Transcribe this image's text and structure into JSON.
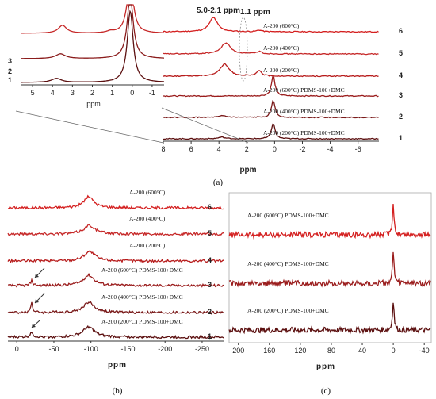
{
  "chart_data": [
    {
      "panel": "a",
      "type": "line",
      "caption": "(a)",
      "xlabel": "ppm",
      "xlim": [
        8,
        -7.5
      ],
      "x_ticks": [
        "8",
        "6",
        "4",
        "2",
        "0",
        "-2",
        "-4",
        "-6"
      ],
      "annotations": [
        "5.0-2.1 ppm",
        "1.1 ppm"
      ],
      "series": [
        {
          "name": "A-200 (600°C)",
          "number": "6",
          "color": "#d42020",
          "peaks": [
            {
              "x": 4.4,
              "h": 18,
              "w": 0.35
            },
            {
              "x": 1.1,
              "h": 2,
              "w": 0.2
            }
          ]
        },
        {
          "name": "A-200 (400°C)",
          "number": "5",
          "color": "#c62828",
          "peaks": [
            {
              "x": 3.5,
              "h": 14,
              "w": 0.4
            },
            {
              "x": 1.1,
              "h": 3,
              "w": 0.2
            }
          ]
        },
        {
          "name": "A-200 (200°C)",
          "number": "4",
          "color": "#b71c1c",
          "peaks": [
            {
              "x": 3.6,
              "h": 15,
              "w": 0.4
            },
            {
              "x": 1.1,
              "h": 7,
              "w": 0.2
            }
          ]
        },
        {
          "name": "A-200 (600°C) PDMS-100+DMC",
          "number": "3",
          "color": "#9a1c1c",
          "peaks": [
            {
              "x": 0.1,
              "h": 26,
              "w": 0.15
            }
          ]
        },
        {
          "name": "A-200 (400°C) PDMS-100+DMC",
          "number": "2",
          "color": "#7a1a1a",
          "peaks": [
            {
              "x": 0.1,
              "h": 22,
              "w": 0.15
            },
            {
              "x": 3.7,
              "h": 2,
              "w": 0.3
            }
          ]
        },
        {
          "name": "A-200 (200°C) PDMS-100+DMC",
          "number": "1",
          "color": "#5c1010",
          "peaks": [
            {
              "x": 0.1,
              "h": 20,
              "w": 0.15
            },
            {
              "x": 3.8,
              "h": 2,
              "w": 0.3
            }
          ]
        }
      ],
      "inset": {
        "xlabel": "ppm",
        "x_ticks": [
          "5",
          "4",
          "3",
          "2",
          "1",
          "0",
          "-1"
        ],
        "xlim": [
          5.6,
          -1.6
        ],
        "numbers": [
          "3",
          "2",
          "1"
        ]
      }
    },
    {
      "panel": "b",
      "type": "line",
      "caption": "(b)",
      "xlabel": "ppm",
      "xlim": [
        12,
        -280
      ],
      "x_ticks": [
        "0",
        "-50",
        "-100",
        "-150",
        "-200",
        "-250"
      ],
      "series": [
        {
          "name": "A-200 (600°C)",
          "number": "6",
          "color": "#d42020",
          "peaks": [
            {
              "x": -97,
              "h": 14,
              "w": 8
            }
          ]
        },
        {
          "name": "A-200 (400°C)",
          "number": "5",
          "color": "#c62828",
          "peaks": [
            {
              "x": -98,
              "h": 11,
              "w": 9
            }
          ]
        },
        {
          "name": "A-200 (200°C)",
          "number": "4",
          "color": "#b71c1c",
          "peaks": [
            {
              "x": -98,
              "h": 12,
              "w": 9
            }
          ]
        },
        {
          "name": "A-200 (600°C) PDMS-100+DMC",
          "number": "3",
          "color": "#9a1c1c",
          "peaks": [
            {
              "x": -97,
              "h": 13,
              "w": 9
            },
            {
              "x": -20,
              "h": 6,
              "w": 2
            }
          ]
        },
        {
          "name": "A-200 (400°C) PDMS-100+DMC",
          "number": "2",
          "color": "#7a1a1a",
          "peaks": [
            {
              "x": -97,
              "h": 13,
              "w": 9
            },
            {
              "x": -20,
              "h": 13,
              "w": 1.5
            }
          ]
        },
        {
          "name": "A-200 (200°C) PDMS-100+DMC",
          "number": "1",
          "color": "#5c1010",
          "peaks": [
            {
              "x": -97,
              "h": 13,
              "w": 9
            },
            {
              "x": -20,
              "h": 7,
              "w": 2
            }
          ]
        }
      ]
    },
    {
      "panel": "c",
      "type": "line",
      "caption": "(c)",
      "xlabel": "ppm",
      "xlim": [
        212,
        -48
      ],
      "x_ticks": [
        "200",
        "160",
        "120",
        "80",
        "40",
        "0",
        "-40"
      ],
      "series": [
        {
          "name": "A-200 (600°C) PDMS-100+DMC",
          "color": "#d42020",
          "peaks": [
            {
              "x": 0,
              "h": 40,
              "w": 1.2
            }
          ]
        },
        {
          "name": "A-200 (400°C) PDMS-100+DMC",
          "color": "#9a1c1c",
          "peaks": [
            {
              "x": 0,
              "h": 38,
              "w": 1.2
            }
          ]
        },
        {
          "name": "A-200 (200°C) PDMS-100+DMC",
          "color": "#5c1010",
          "peaks": [
            {
              "x": 0,
              "h": 38,
              "w": 1.2
            }
          ]
        }
      ]
    }
  ]
}
